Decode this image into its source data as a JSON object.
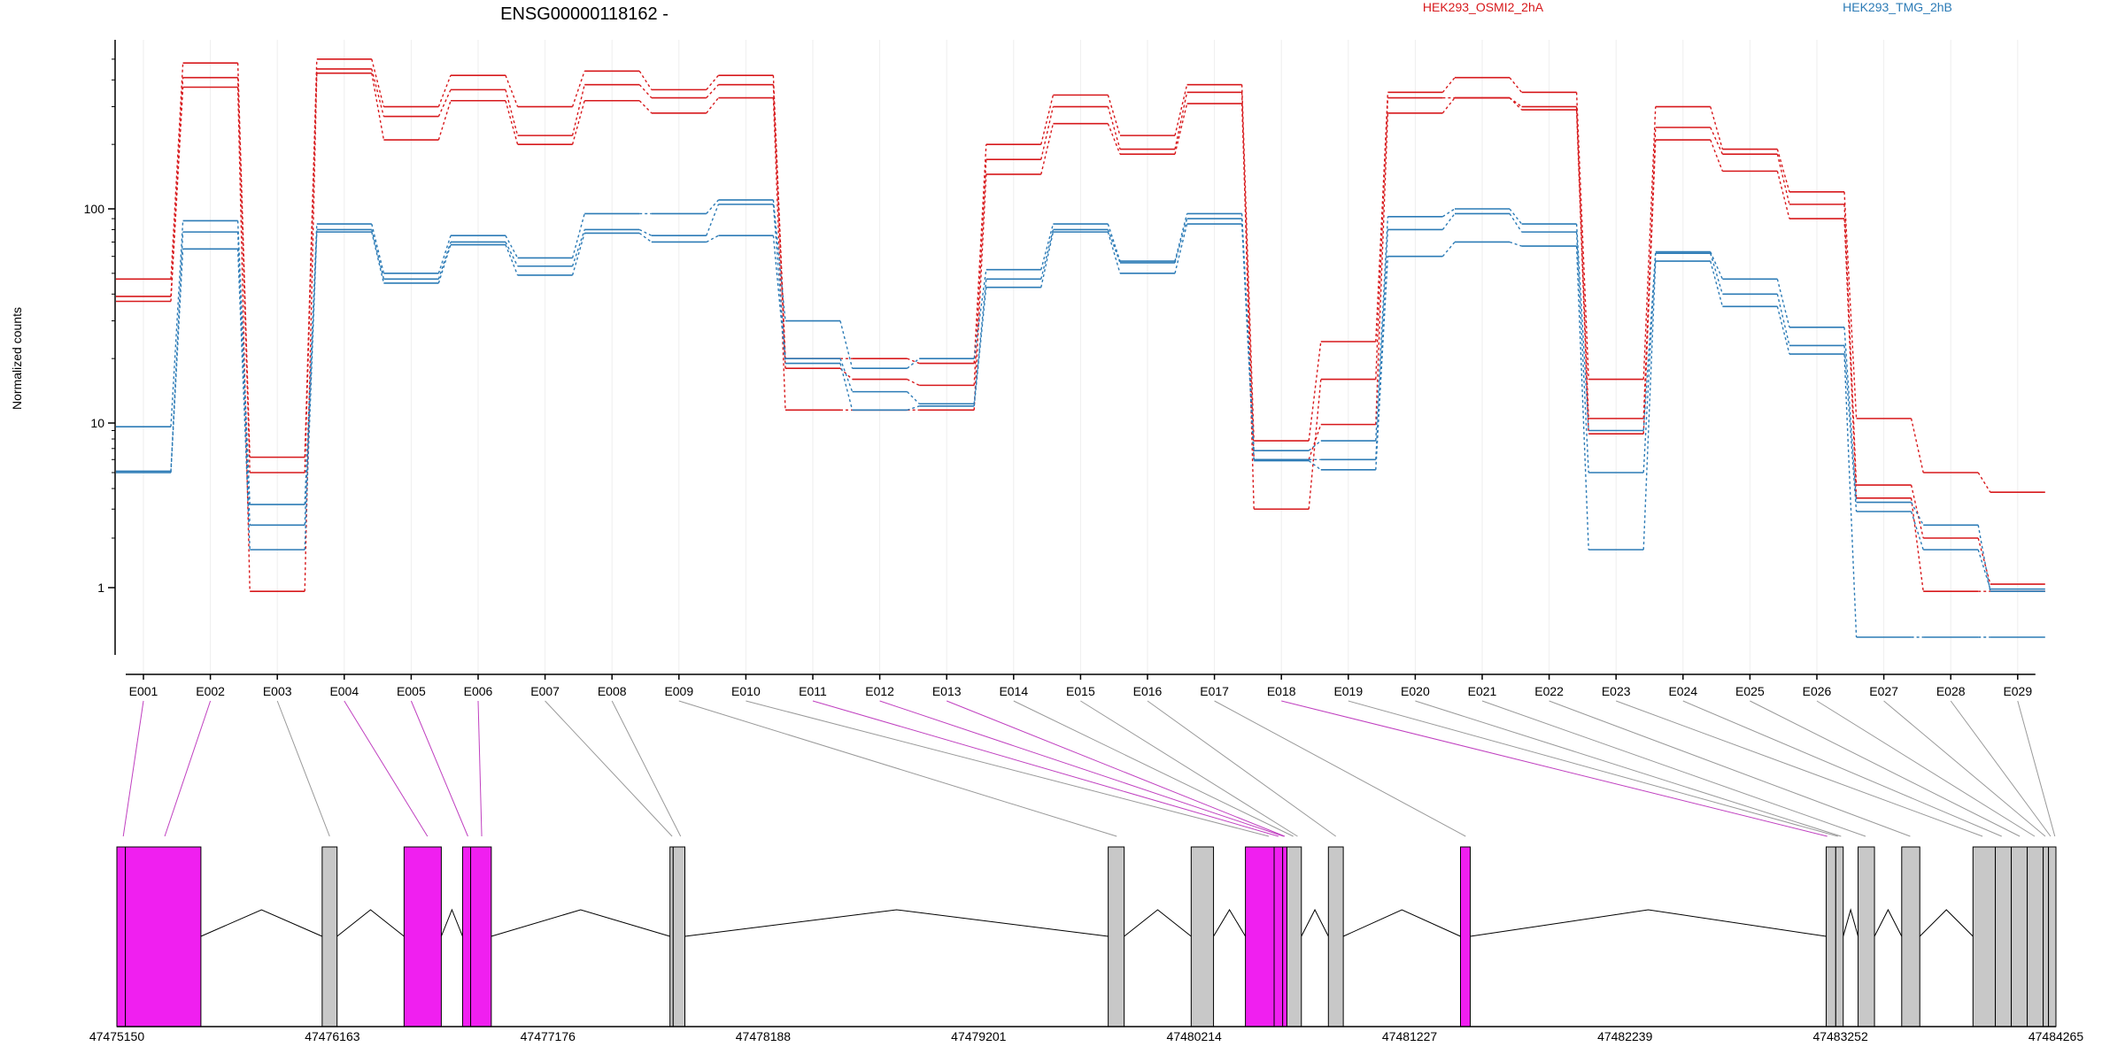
{
  "chart_data": {
    "type": "line",
    "title": "ENSG00000118162 -",
    "ylabel": "Normalized counts",
    "y_scale": "log",
    "y_ticks": [
      "1",
      "10",
      "100"
    ],
    "categories": [
      "E001",
      "E002",
      "E003",
      "E004",
      "E005",
      "E006",
      "E007",
      "E008",
      "E009",
      "E010",
      "E011",
      "E012",
      "E013",
      "E014",
      "E015",
      "E016",
      "E017",
      "E018",
      "E019",
      "E020",
      "E021",
      "E022",
      "E023",
      "E024",
      "E025",
      "E026",
      "E027",
      "E028",
      "E029"
    ],
    "legend": [
      {
        "name": "HEK293_OSMI2_2hA",
        "color": "#d7191c"
      },
      {
        "name": "HEK293_TMG_2hB",
        "color": "#2c7bb6"
      }
    ],
    "series": [
      {
        "group": "HEK293_OSMI2_2hA",
        "color": "#d7191c",
        "values": [
          47,
          480,
          6.2,
          500,
          300,
          420,
          300,
          440,
          360,
          420,
          20,
          20,
          19,
          200,
          340,
          220,
          380,
          7.8,
          24,
          350,
          410,
          350,
          16,
          300,
          190,
          120,
          10.5,
          5,
          3.8
        ]
      },
      {
        "group": "HEK293_OSMI2_2hA",
        "color": "#d7191c",
        "values": [
          39,
          410,
          5,
          450,
          270,
          360,
          220,
          380,
          330,
          380,
          18,
          16,
          15,
          170,
          300,
          190,
          350,
          3,
          16,
          330,
          330,
          300,
          10.5,
          240,
          180,
          105,
          4.2,
          2,
          1.05
        ]
      },
      {
        "group": "HEK293_OSMI2_2hA",
        "color": "#d7191c",
        "values": [
          37,
          370,
          0.95,
          430,
          210,
          320,
          200,
          320,
          280,
          330,
          11.5,
          11.5,
          11.5,
          145,
          250,
          180,
          310,
          6,
          9.8,
          280,
          330,
          290,
          8.6,
          210,
          150,
          90,
          3.5,
          0.95,
          0.95
        ]
      },
      {
        "group": "HEK293_TMG_2hB",
        "color": "#2c7bb6",
        "values": [
          9.5,
          88,
          3.2,
          85,
          50,
          75,
          59,
          95,
          95,
          110,
          30,
          18,
          20,
          52,
          85,
          57,
          95,
          6.8,
          7.8,
          92,
          100,
          85,
          9,
          63,
          47,
          28,
          3.3,
          2.4,
          0.95
        ]
      },
      {
        "group": "HEK293_TMG_2hB",
        "color": "#2c7bb6",
        "values": [
          5.1,
          78,
          2.4,
          80,
          47,
          70,
          54,
          80,
          75,
          105,
          20,
          14,
          12.3,
          47,
          80,
          56,
          90,
          6,
          6,
          80,
          95,
          78,
          5,
          62,
          40,
          23,
          2.9,
          1.7,
          0.98
        ]
      },
      {
        "group": "HEK293_TMG_2hB",
        "color": "#2c7bb6",
        "values": [
          5,
          65,
          1.7,
          78,
          45,
          68,
          49,
          77,
          70,
          75,
          19,
          11.5,
          12,
          43,
          78,
          50,
          85,
          5.9,
          5.2,
          60,
          70,
          67,
          1.7,
          57,
          35,
          21,
          0.5,
          0.5,
          0.5
        ]
      }
    ],
    "genomic_axis_ticks": [
      "47475150",
      "47476163",
      "47477176",
      "47478188",
      "47479201",
      "47480214",
      "47481227",
      "47482239",
      "47483252",
      "47484265"
    ],
    "exon_highlight_colors": {
      "differential": "#f01ff0",
      "other": "#c8c8c8"
    },
    "exons": [
      {
        "start": 47475150,
        "end": 47475190,
        "differential": true
      },
      {
        "start": 47475190,
        "end": 47475545,
        "differential": true
      },
      {
        "start": 47476115,
        "end": 47476185,
        "differential": false
      },
      {
        "start": 47476500,
        "end": 47476675,
        "differential": true
      },
      {
        "start": 47476775,
        "end": 47476813,
        "differential": true
      },
      {
        "start": 47476813,
        "end": 47476910,
        "differential": true
      },
      {
        "start": 47477750,
        "end": 47477765,
        "differential": false
      },
      {
        "start": 47477765,
        "end": 47477820,
        "differential": false
      },
      {
        "start": 47479810,
        "end": 47479885,
        "differential": false
      },
      {
        "start": 47480200,
        "end": 47480305,
        "differential": false
      },
      {
        "start": 47480455,
        "end": 47480590,
        "differential": true
      },
      {
        "start": 47480590,
        "end": 47480630,
        "differential": true
      },
      {
        "start": 47480630,
        "end": 47480650,
        "differential": true
      },
      {
        "start": 47480650,
        "end": 47480718,
        "differential": false
      },
      {
        "start": 47480845,
        "end": 47480915,
        "differential": false
      },
      {
        "start": 47481466,
        "end": 47481512,
        "differential": true
      },
      {
        "start": 47483185,
        "end": 47483230,
        "differential": false
      },
      {
        "start": 47483230,
        "end": 47483265,
        "differential": false
      },
      {
        "start": 47483335,
        "end": 47483412,
        "differential": false
      },
      {
        "start": 47483540,
        "end": 47483625,
        "differential": false
      },
      {
        "start": 47483875,
        "end": 47483980,
        "differential": false
      },
      {
        "start": 47483980,
        "end": 47484055,
        "differential": false
      },
      {
        "start": 47484055,
        "end": 47484130,
        "differential": false
      },
      {
        "start": 47484130,
        "end": 47484205,
        "differential": false
      },
      {
        "start": 47484205,
        "end": 47484230,
        "differential": false
      },
      {
        "start": 47484230,
        "end": 47484265,
        "differential": false
      }
    ],
    "exon_links": [
      0,
      1,
      2,
      3,
      4,
      5,
      6,
      7,
      8,
      9,
      10,
      11,
      12,
      13,
      14,
      15,
      16,
      17,
      18,
      19,
      20,
      21,
      22,
      23,
      24,
      25,
      26,
      27,
      28
    ],
    "exon_link_targets": [
      47475180,
      47475375,
      47476150,
      47476610,
      47476800,
      47476865,
      47477760,
      47477800,
      47479850,
      47480565,
      47480610,
      47480635,
      47480640,
      47480680,
      47480700,
      47480880,
      47481490,
      47483190,
      47483240,
      47483255,
      47483370,
      47483580,
      47483920,
      47484010,
      47484095,
      47484165,
      47484215,
      47484240,
      47484260
    ]
  }
}
